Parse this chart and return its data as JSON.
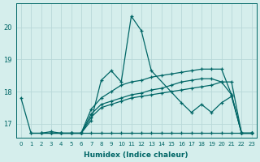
{
  "xlabel": "Humidex (Indice chaleur)",
  "ylabel": "",
  "bg_color": "#d5eeec",
  "line_color": "#006666",
  "grid_color": "#b8d8d8",
  "xlim": [
    -0.5,
    23.5
  ],
  "ylim": [
    16.55,
    20.75
  ],
  "yticks": [
    17,
    18,
    19,
    20
  ],
  "xticks": [
    0,
    1,
    2,
    3,
    4,
    5,
    6,
    7,
    8,
    9,
    10,
    11,
    12,
    13,
    14,
    15,
    16,
    17,
    18,
    19,
    20,
    21,
    22,
    23
  ],
  "lines": [
    {
      "x": [
        0,
        1,
        2,
        3,
        4,
        5,
        6,
        7,
        8,
        9,
        10,
        11,
        12,
        13,
        16,
        17,
        18,
        19,
        20,
        21,
        22,
        23
      ],
      "y": [
        17.8,
        16.7,
        16.7,
        16.75,
        16.7,
        16.7,
        16.7,
        17.1,
        18.35,
        18.65,
        18.3,
        20.35,
        19.9,
        18.65,
        17.65,
        17.35,
        17.6,
        17.35,
        17.65,
        17.85,
        16.7,
        16.7
      ]
    },
    {
      "x": [
        1,
        2,
        3,
        4,
        5,
        6,
        7,
        8,
        9,
        10,
        11,
        12,
        13,
        14,
        15,
        16,
        17,
        18,
        19,
        20,
        21,
        22,
        23
      ],
      "y": [
        16.7,
        16.7,
        16.7,
        16.7,
        16.7,
        16.7,
        16.7,
        16.7,
        16.7,
        16.7,
        16.7,
        16.7,
        16.7,
        16.7,
        16.7,
        16.7,
        16.7,
        16.7,
        16.7,
        16.7,
        16.7,
        16.7,
        16.7
      ]
    },
    {
      "x": [
        2,
        3,
        4,
        5,
        6,
        7,
        8,
        9,
        10,
        11,
        12,
        13,
        14,
        15,
        16,
        17,
        18,
        19,
        20,
        21,
        22,
        23
      ],
      "y": [
        16.7,
        16.7,
        16.7,
        16.7,
        16.7,
        17.2,
        17.5,
        17.6,
        17.7,
        17.8,
        17.85,
        17.9,
        17.95,
        18.0,
        18.05,
        18.1,
        18.15,
        18.2,
        18.3,
        18.3,
        16.7,
        16.7
      ]
    },
    {
      "x": [
        3,
        4,
        5,
        6,
        7,
        8,
        9,
        10,
        11,
        12,
        13,
        14,
        15,
        16,
        17,
        18,
        19,
        20,
        21,
        22,
        23
      ],
      "y": [
        16.7,
        16.7,
        16.7,
        16.7,
        17.3,
        17.6,
        17.7,
        17.8,
        17.9,
        17.95,
        18.05,
        18.1,
        18.2,
        18.3,
        18.35,
        18.4,
        18.4,
        18.3,
        17.9,
        16.7,
        16.7
      ]
    },
    {
      "x": [
        6,
        7,
        8,
        9,
        10,
        11,
        12,
        13,
        14,
        15,
        16,
        17,
        18,
        19,
        20,
        21,
        22,
        23
      ],
      "y": [
        16.7,
        17.45,
        17.8,
        18.0,
        18.2,
        18.3,
        18.35,
        18.45,
        18.5,
        18.55,
        18.6,
        18.65,
        18.7,
        18.7,
        18.7,
        17.9,
        16.7,
        16.7
      ]
    }
  ]
}
